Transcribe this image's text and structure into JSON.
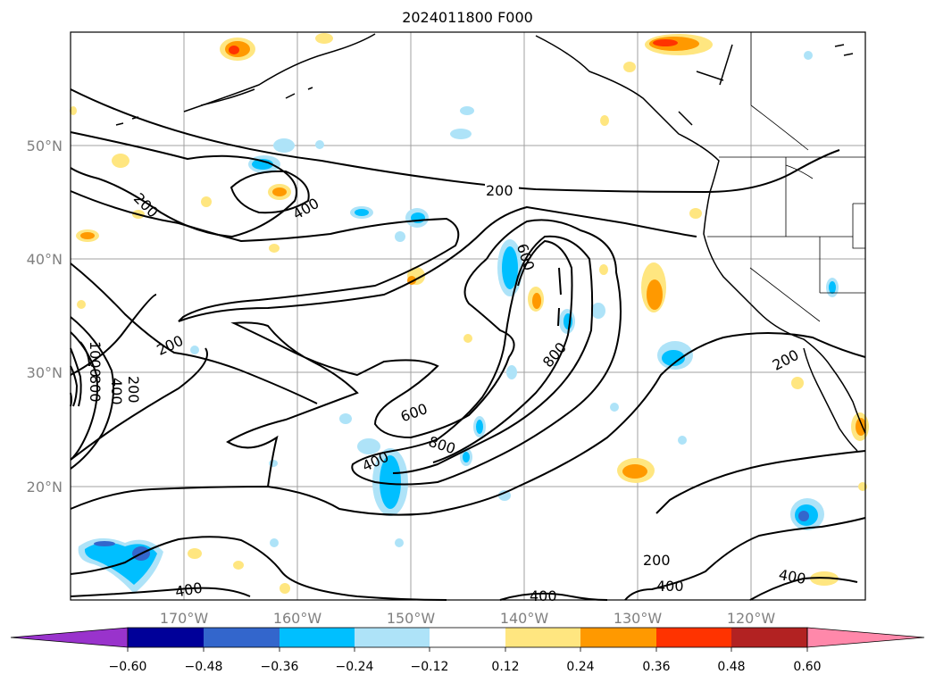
{
  "title": "2024011800 F000",
  "map": {
    "lon_ticks": [
      "170°W",
      "160°W",
      "150°W",
      "140°W",
      "130°W",
      "120°W"
    ],
    "lat_ticks": [
      "20°N",
      "30°N",
      "40°N",
      "50°N"
    ],
    "contour_labels": [
      "200",
      "200",
      "200",
      "200",
      "400",
      "400",
      "400",
      "400",
      "400",
      "400",
      "600",
      "600",
      "800",
      "800",
      "800",
      "1000",
      "200",
      "400",
      "200"
    ],
    "contour_color": "#000000",
    "grid_color": "#a0a0a0"
  },
  "colorbar": {
    "ticks": [
      "−0.60",
      "−0.48",
      "−0.36",
      "−0.24",
      "−0.12",
      "0.12",
      "0.24",
      "0.36",
      "0.48",
      "0.60"
    ],
    "colors": [
      "#9933cc",
      "#000099",
      "#3366cc",
      "#00bfff",
      "#aee3f8",
      "#ffffff",
      "#ffe680",
      "#ff9900",
      "#ff3300",
      "#b22222",
      "#ff88aa"
    ]
  }
}
